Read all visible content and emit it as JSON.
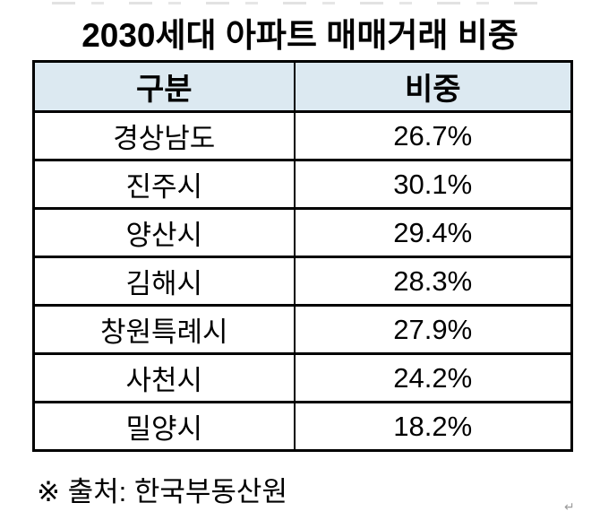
{
  "page": {
    "background": "#ffffff"
  },
  "title": "2030세대 아파트 매매거래 비중",
  "table": {
    "headers": [
      "구분",
      "비중"
    ],
    "rows": [
      {
        "category": "경상남도",
        "share": "26.7%"
      },
      {
        "category": "진주시",
        "share": "30.1%"
      },
      {
        "category": "양산시",
        "share": "29.4%"
      },
      {
        "category": "김해시",
        "share": "28.3%"
      },
      {
        "category": "창원특례시",
        "share": "27.9%"
      },
      {
        "category": "사천시",
        "share": "24.2%"
      },
      {
        "category": "밀양시",
        "share": "18.2%"
      }
    ],
    "colors": {
      "header_bg": "#dce9f1",
      "border": "#000000",
      "text": "#000000"
    }
  },
  "footer": {
    "source_note": "※ 출처: 한국부동산원"
  },
  "artifacts": {
    "line_break_mark": "↵"
  },
  "chart_data": {
    "type": "table",
    "title": "2030세대 아파트 매매거래 비중",
    "columns": [
      "구분",
      "비중"
    ],
    "categories": [
      "경상남도",
      "진주시",
      "양산시",
      "김해시",
      "창원특례시",
      "사천시",
      "밀양시"
    ],
    "values_percent": [
      26.7,
      30.1,
      29.4,
      28.3,
      27.9,
      24.2,
      18.2
    ],
    "source": "※ 출처: 한국부동산원"
  }
}
